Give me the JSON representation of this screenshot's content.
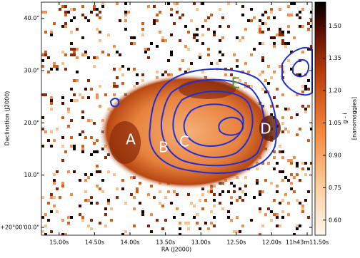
{
  "chart_data": {
    "type": "image",
    "xlabel": "RA (J2000)",
    "ylabel": "Declination (J2000)",
    "xlim": [
      15.25,
      11.43
    ],
    "xticks": [
      {
        "value": 15.0,
        "label": "15.00s"
      },
      {
        "value": 14.5,
        "label": "14.50s"
      },
      {
        "value": 14.0,
        "label": "14.00s"
      },
      {
        "value": 13.5,
        "label": "13.50s"
      },
      {
        "value": 13.0,
        "label": "13.00s"
      },
      {
        "value": 12.5,
        "label": "12.50s"
      },
      {
        "value": 12.0,
        "label": "12.00s"
      },
      {
        "value": 11.5,
        "label": "11h43m11.50s"
      }
    ],
    "ylim": [
      -1.5,
      43.1
    ],
    "yticks": [
      {
        "value": 40,
        "label": "40.0\""
      },
      {
        "value": 30,
        "label": "30.0\""
      },
      {
        "value": 20,
        "label": "20.0\""
      },
      {
        "value": 10,
        "label": "10.0\""
      },
      {
        "value": 0,
        "label": "+20°00'00.0\""
      }
    ],
    "colorbar": {
      "label": "g - i",
      "unit": "[nanomaggies]",
      "lim": [
        0.53,
        1.61
      ],
      "ticks": [
        {
          "value": 0.6,
          "label": "0.60"
        },
        {
          "value": 0.75,
          "label": "0.75"
        },
        {
          "value": 0.9,
          "label": "0.90"
        },
        {
          "value": 1.05,
          "label": "1.05"
        },
        {
          "value": 1.2,
          "label": "1.20"
        },
        {
          "value": 1.35,
          "label": "1.35"
        },
        {
          "value": 1.5,
          "label": "1.50"
        }
      ]
    },
    "regions": [
      "A",
      "B",
      "C",
      "D",
      "E"
    ]
  }
}
